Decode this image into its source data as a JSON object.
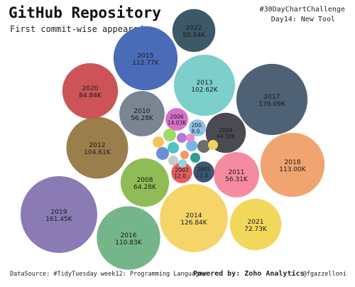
{
  "header": {
    "title": "GitHub Repository",
    "subtitle": "First commit-wise appeared",
    "tag_challenge": "#30DayChartChallenge",
    "tag_day": "Day14: New Tool"
  },
  "footer": {
    "source": "DataSource: #TidyTuesday week12: Programming Languages",
    "powered": "Powered by: Zoho Analytics",
    "author": "@fgazzelloni"
  },
  "chart_data": {
    "type": "bubble",
    "title": "GitHub Repository",
    "subtitle": "First commit-wise appeared",
    "bubbles": [
      {
        "year": "2019",
        "value": 161.45,
        "label": "161.45K",
        "color": "#8a7bb5"
      },
      {
        "year": "2017",
        "value": 139.09,
        "label": "139.09K",
        "color": "#4f6275"
      },
      {
        "year": "2014",
        "value": 126.84,
        "label": "126.84K",
        "color": "#f5d56a"
      },
      {
        "year": "2018",
        "value": 113.0,
        "label": "113.00K",
        "color": "#f0a470"
      },
      {
        "year": "2015",
        "value": 112.77,
        "label": "112.77K",
        "color": "#4a6bb8"
      },
      {
        "year": "2016",
        "value": 110.83,
        "label": "110.83K",
        "color": "#75b58a"
      },
      {
        "year": "2012",
        "value": 104.61,
        "label": "104.61K",
        "color": "#9a7e4c"
      },
      {
        "year": "2013",
        "value": 102.62,
        "label": "102.62K",
        "color": "#7ccfcb"
      },
      {
        "year": "2020",
        "value": 84.84,
        "label": "84.84K",
        "color": "#cc5458"
      },
      {
        "year": "2021",
        "value": 72.73,
        "label": "72.73K",
        "color": "#f2d85a"
      },
      {
        "year": "2008",
        "value": 64.28,
        "label": "64.28K",
        "color": "#8fbc56"
      },
      {
        "year": "2010",
        "value": 56.28,
        "label": "56.28K",
        "color": "#7a8592"
      },
      {
        "year": "2011",
        "value": 56.31,
        "label": "56.31K",
        "color": "#f58aa0"
      },
      {
        "year": "2022",
        "value": 50.54,
        "label": "50.54K",
        "color": "#3d5866"
      },
      {
        "year": "2009",
        "value": 44.18,
        "label": "44.18K",
        "color": "#4a4a52"
      },
      {
        "year": "2006",
        "value": 14.03,
        "label": "14.03K",
        "color": "#d572c8"
      },
      {
        "year": "200.",
        "value": 8.0,
        "label": "8.0..",
        "color": "#8ec6e8"
      },
      {
        "year": "2003",
        "value": 12.0,
        "label": "12.0..",
        "color": "#e55c62"
      },
      {
        "year": "2005",
        "value": 12.0,
        "label": "12.0..",
        "color": "#3c5673"
      }
    ],
    "unlabeled_bubbles": [
      {
        "color": "#9ddc6a"
      },
      {
        "color": "#b07bd6"
      },
      {
        "color": "#79b6e6"
      },
      {
        "color": "#6e6e6e"
      },
      {
        "color": "#f3c45a"
      },
      {
        "color": "#4fc3c0"
      },
      {
        "color": "#f39a62"
      },
      {
        "color": "#2f9f8e"
      },
      {
        "color": "#6b8ed6"
      },
      {
        "color": "#c9c9c9"
      },
      {
        "color": "#e98bd0"
      },
      {
        "color": "#f2d160"
      },
      {
        "color": "#8fd6e0"
      }
    ]
  }
}
